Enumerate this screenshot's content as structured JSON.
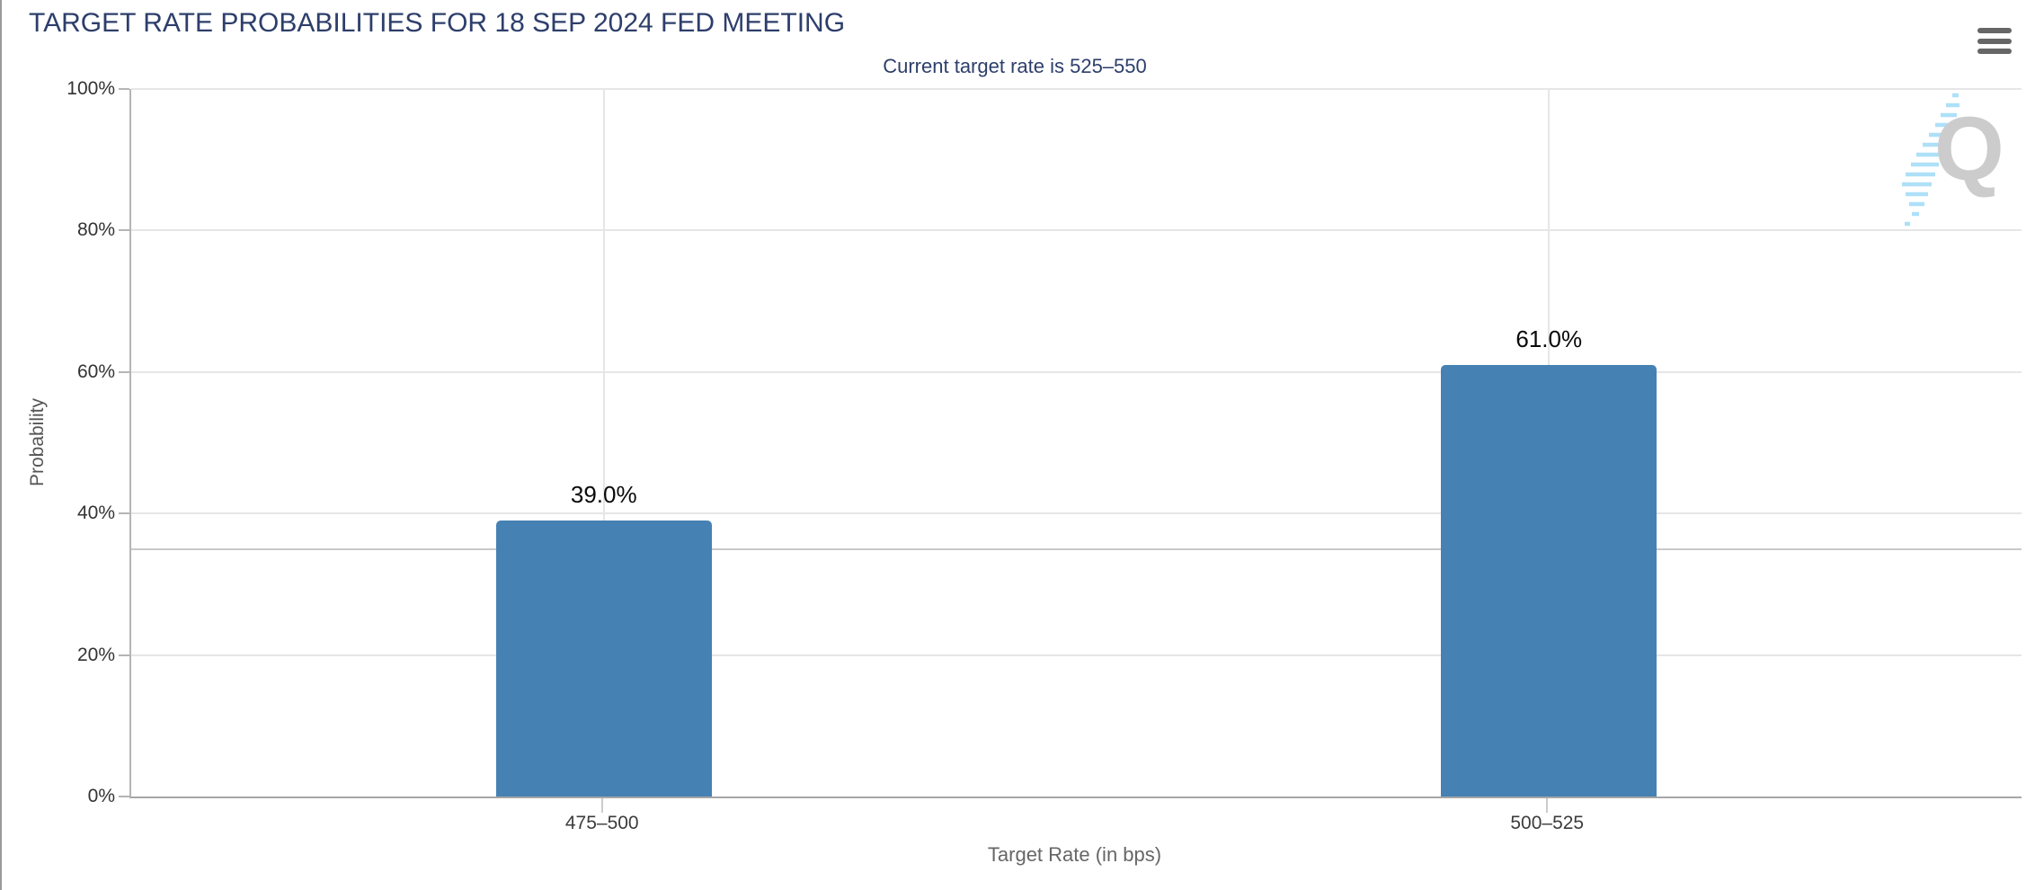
{
  "header": {
    "title": "TARGET RATE PROBABILITIES FOR 18 SEP 2024 FED MEETING",
    "subtitle": "Current target rate is 525–550"
  },
  "menu": {
    "icon": "hamburger-menu-icon"
  },
  "watermark": {
    "letter": "Q"
  },
  "chart_data": {
    "type": "bar",
    "title": "TARGET RATE PROBABILITIES FOR 18 SEP 2024 FED MEETING",
    "subtitle": "Current target rate is 525–550",
    "categories": [
      "475–500",
      "500–525"
    ],
    "values": [
      39.0,
      61.0
    ],
    "bar_labels": [
      "39.0%",
      "61.0%"
    ],
    "xlabel": "Target Rate (in bps)",
    "ylabel": "Probability",
    "ylim": [
      0,
      100
    ],
    "yticks": [
      0,
      20,
      40,
      60,
      80,
      100
    ],
    "ytick_labels": [
      "0%",
      "20%",
      "40%",
      "60%",
      "80%",
      "100%"
    ],
    "reference_line": 35,
    "grid": true,
    "legend": "none",
    "bar_color": "#4681b4",
    "accent_color": "#2d3e6b",
    "gridline_color": "#e6e6e6",
    "reference_line_color": "#c9c9c9"
  }
}
